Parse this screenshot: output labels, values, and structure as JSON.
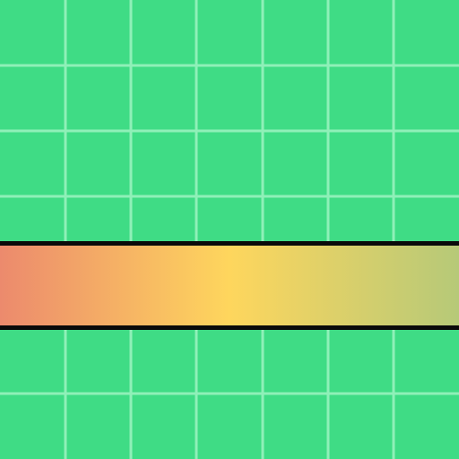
{
  "colors": {
    "background": "#3fdc85",
    "grid_line": "#8ff0b8",
    "bar_border": "#0a0a0a",
    "gradient_stops": [
      {
        "color": "#ec8a6d",
        "pos": 0
      },
      {
        "color": "#fed65d",
        "pos": 0.5
      },
      {
        "color": "#b6c978",
        "pos": 1
      }
    ]
  }
}
